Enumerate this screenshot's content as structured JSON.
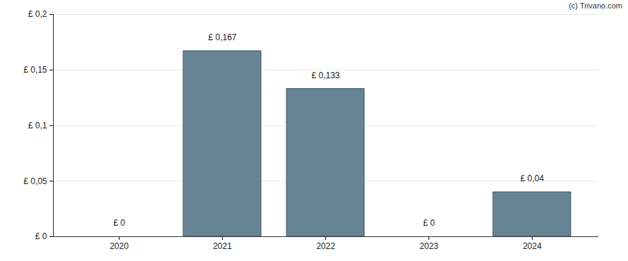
{
  "chart_data": {
    "type": "bar",
    "caption": "(c) Trivano.com",
    "categories": [
      "2020",
      "2021",
      "2022",
      "2023",
      "2024"
    ],
    "values": [
      0,
      0.167,
      0.133,
      0,
      0.04
    ],
    "value_labels": [
      "£ 0",
      "£ 0,167",
      "£ 0,133",
      "£ 0",
      "£ 0,04"
    ],
    "data_labels": true,
    "color": "#668494",
    "ylim": [
      0,
      0.2
    ],
    "yticks": [
      {
        "value": 0,
        "label": "£ 0"
      },
      {
        "value": 0.05,
        "label": "£ 0,05"
      },
      {
        "value": 0.1,
        "label": "£ 0,1"
      },
      {
        "value": 0.15,
        "label": "£ 0,15"
      },
      {
        "value": 0.2,
        "label": "£ 0,2"
      }
    ],
    "grid": true
  }
}
